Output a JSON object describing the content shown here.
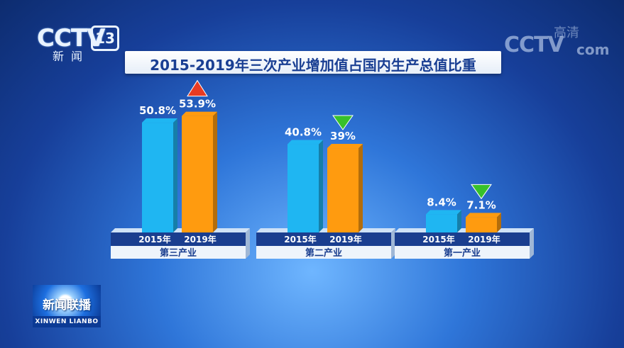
{
  "channel": {
    "brand": "CCTV",
    "number": "13",
    "sub": "新闻"
  },
  "watermark": {
    "brand": "CCTV",
    "hd": "高清",
    "suffix": "com"
  },
  "program": {
    "name_zh": "新闻联播",
    "name_en": "XINWEN LIANBO"
  },
  "chart_data": {
    "type": "bar",
    "title": "2015-2019年三次产业增加值占国内生产总值比重",
    "groups": [
      {
        "name": "第三产业",
        "years": [
          "2015年",
          "2019年"
        ],
        "values": [
          50.8,
          53.9
        ],
        "labels": [
          "50.8%",
          "53.9%"
        ],
        "trend": "up"
      },
      {
        "name": "第二产业",
        "years": [
          "2015年",
          "2019年"
        ],
        "values": [
          40.8,
          39.0
        ],
        "labels": [
          "40.8%",
          "39%"
        ],
        "trend": "down"
      },
      {
        "name": "第一产业",
        "years": [
          "2015年",
          "2019年"
        ],
        "values": [
          8.4,
          7.1
        ],
        "labels": [
          "8.4%",
          "7.1%"
        ],
        "trend": "down"
      }
    ],
    "colors": {
      "2015": "#1fb6f2",
      "2019": "#ff9b0f",
      "up": "#e83b23",
      "down": "#37c12b"
    }
  }
}
